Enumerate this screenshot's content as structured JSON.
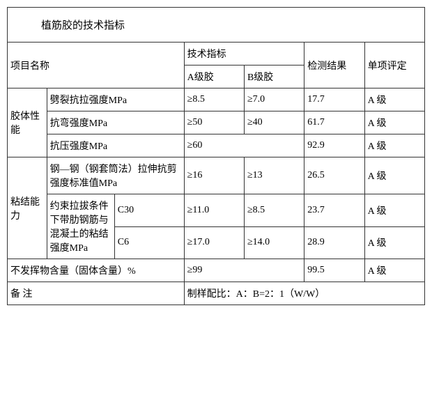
{
  "title": "植筋胶的技术指标",
  "header": {
    "project_name": "项目名称",
    "tech_spec": "技术指标",
    "a_grade": "A级胶",
    "b_grade": "B级胶",
    "test_result": "检测结果",
    "single_eval": "单项评定"
  },
  "groups": {
    "body_perf": "胶体性能",
    "bond_ability": "粘结能力"
  },
  "rows": {
    "r1": {
      "item": "劈裂抗拉强度MPa",
      "a": "≥8.5",
      "b": "≥7.0",
      "result": "17.7",
      "grade": "A 级"
    },
    "r2": {
      "item": "抗弯强度MPa",
      "a": "≥50",
      "b": "≥40",
      "result": "61.7",
      "grade": "A 级"
    },
    "r3": {
      "item": "抗压强度MPa",
      "ab": "≥60",
      "result": "92.9",
      "grade": "A 级"
    },
    "r4": {
      "item": "钢—钢（钢套筒法）拉伸抗剪强度标准值MPa",
      "a": "≥16",
      "b": "≥13",
      "result": "26.5",
      "grade": "A 级"
    },
    "r5": {
      "sub": "约束拉拔条件下带肋钢筋与混凝土的粘结强度MPa",
      "item": "C30",
      "a": "≥11.0",
      "b": "≥8.5",
      "result": "23.7",
      "grade": "A 级"
    },
    "r6": {
      "item": "C6",
      "a": "≥17.0",
      "b": "≥14.0",
      "result": "28.9",
      "grade": "A 级"
    },
    "r7": {
      "item": "不发挥物含量（固体含量）%",
      "ab": "≥99",
      "result": "99.5",
      "grade": "A 级"
    }
  },
  "footer": {
    "remark_label": "备 注",
    "remark_value": "制样配比：A：B=2：1（W/W）"
  }
}
